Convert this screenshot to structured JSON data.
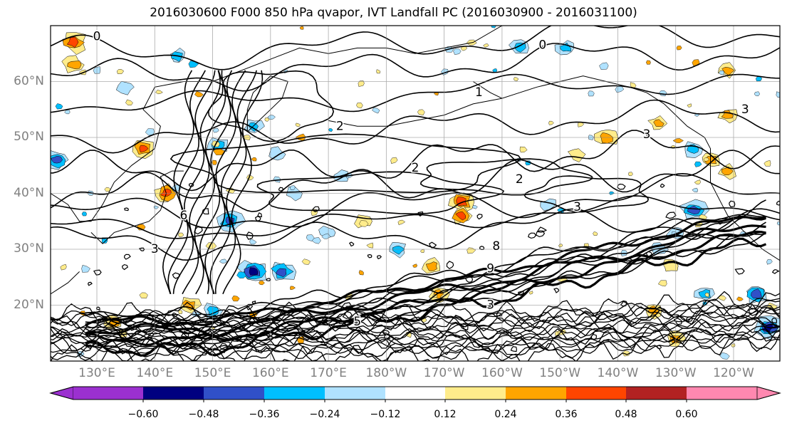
{
  "chart_data": {
    "type": "heatmap",
    "title": "2016030600 F000 850 hPa qvapor, IVT Landfall PC (2016030900 - 2016031100)",
    "projection": "map",
    "latitude_ticks": [
      "20°N",
      "30°N",
      "40°N",
      "50°N",
      "60°N"
    ],
    "latitude_values": [
      20,
      30,
      40,
      50,
      60
    ],
    "longitude_ticks": [
      "130°E",
      "140°E",
      "150°E",
      "160°E",
      "170°E",
      "180°W",
      "170°W",
      "160°W",
      "150°W",
      "140°W",
      "130°W",
      "120°W"
    ],
    "lat_range": [
      10,
      70
    ],
    "lon_range": [
      122,
      248
    ],
    "grid": true,
    "colorbar": {
      "orientation": "horizontal",
      "extend": "both",
      "ticks": [
        "−0.60",
        "−0.48",
        "−0.36",
        "−0.24",
        "−0.12",
        "0.12",
        "0.24",
        "0.36",
        "0.48",
        "0.60"
      ],
      "levels": [
        -0.6,
        -0.48,
        -0.36,
        -0.24,
        -0.12,
        0.12,
        0.24,
        0.36,
        0.48,
        0.6
      ],
      "colors": [
        "#9b30d0",
        "#000080",
        "#3050c8",
        "#00bfff",
        "#b0e2ff",
        "#ffffff",
        "#ffec8b",
        "#ffa500",
        "#ff4500",
        "#b22222",
        "#ff88b0"
      ]
    },
    "contour_labels": [
      {
        "text": "0",
        "lat": 68,
        "lon": 130
      },
      {
        "text": "0",
        "lat": 66.5,
        "lon": 207
      },
      {
        "text": "1",
        "lat": 58,
        "lon": 196
      },
      {
        "text": "2",
        "lat": 52,
        "lon": 172
      },
      {
        "text": "2",
        "lat": 44.5,
        "lon": 185
      },
      {
        "text": "2",
        "lat": 42.5,
        "lon": 203
      },
      {
        "text": "3",
        "lat": 50.5,
        "lon": 225
      },
      {
        "text": "3",
        "lat": 55,
        "lon": 242
      },
      {
        "text": "3",
        "lat": 37.5,
        "lon": 213
      },
      {
        "text": "6",
        "lat": 36,
        "lon": 145
      },
      {
        "text": "8",
        "lat": 30.5,
        "lon": 199
      },
      {
        "text": "9",
        "lat": 26.5,
        "lon": 198
      },
      {
        "text": "3",
        "lat": 20,
        "lon": 198
      },
      {
        "text": "3",
        "lat": 30,
        "lon": 140
      },
      {
        "text": "5",
        "lat": 17,
        "lon": 175
      }
    ],
    "anomaly_patches": [
      {
        "lat": 67,
        "lon": 126,
        "value": 0.45
      },
      {
        "lat": 63,
        "lon": 126,
        "value": 0.3
      },
      {
        "lat": 48,
        "lon": 138,
        "value": 0.4
      },
      {
        "lat": 46,
        "lon": 123,
        "value": -0.4
      },
      {
        "lat": 40,
        "lon": 142,
        "value": 0.4
      },
      {
        "lat": 48.5,
        "lon": 151,
        "value": -0.3
      },
      {
        "lat": 35,
        "lon": 153,
        "value": -0.45
      },
      {
        "lat": 26,
        "lon": 157,
        "value": -0.5
      },
      {
        "lat": 26,
        "lon": 162,
        "value": -0.45
      },
      {
        "lat": 38.5,
        "lon": 193,
        "value": 0.45
      },
      {
        "lat": 36,
        "lon": 193,
        "value": 0.4
      },
      {
        "lat": 66,
        "lon": 203,
        "value": -0.3
      },
      {
        "lat": 66,
        "lon": 211,
        "value": -0.25
      },
      {
        "lat": 50,
        "lon": 218,
        "value": 0.35
      },
      {
        "lat": 48,
        "lon": 233,
        "value": -0.3
      },
      {
        "lat": 37,
        "lon": 233,
        "value": -0.45
      },
      {
        "lat": 22,
        "lon": 235,
        "value": -0.3
      },
      {
        "lat": 22,
        "lon": 244,
        "value": -0.4
      },
      {
        "lat": 16,
        "lon": 246,
        "value": -0.5
      },
      {
        "lat": 64.5,
        "lon": 144,
        "value": -0.25
      },
      {
        "lat": 59,
        "lon": 135,
        "value": -0.2
      },
      {
        "lat": 52,
        "lon": 157,
        "value": -0.25
      },
      {
        "lat": 47,
        "lon": 161,
        "value": -0.2
      },
      {
        "lat": 43,
        "lon": 172,
        "value": -0.2
      },
      {
        "lat": 40,
        "lon": 164,
        "value": -0.2
      },
      {
        "lat": 17,
        "lon": 133,
        "value": 0.25
      },
      {
        "lat": 20,
        "lon": 146,
        "value": 0.3
      },
      {
        "lat": 19,
        "lon": 150,
        "value": -0.25
      },
      {
        "lat": 22,
        "lon": 189,
        "value": 0.25
      },
      {
        "lat": 27,
        "lon": 188,
        "value": 0.25
      },
      {
        "lat": 30,
        "lon": 182,
        "value": -0.25
      },
      {
        "lat": 52.5,
        "lon": 227,
        "value": 0.25
      },
      {
        "lat": 46,
        "lon": 236,
        "value": 0.3
      },
      {
        "lat": 44,
        "lon": 239,
        "value": 0.25
      },
      {
        "lat": 62,
        "lon": 239,
        "value": 0.25
      },
      {
        "lat": 54,
        "lon": 239,
        "value": 0.25
      },
      {
        "lat": 27,
        "lon": 229,
        "value": 0.2
      },
      {
        "lat": 19,
        "lon": 226,
        "value": 0.25
      },
      {
        "lat": 14,
        "lon": 230,
        "value": 0.25
      },
      {
        "lat": 33,
        "lon": 230,
        "value": -0.2
      },
      {
        "lat": 30,
        "lon": 227,
        "value": -0.2
      },
      {
        "lat": 35,
        "lon": 176,
        "value": 0.2
      },
      {
        "lat": 33,
        "lon": 170,
        "value": -0.2
      },
      {
        "lat": 47,
        "lon": 213,
        "value": 0.2
      },
      {
        "lat": 38,
        "lon": 208,
        "value": -0.2
      }
    ]
  }
}
